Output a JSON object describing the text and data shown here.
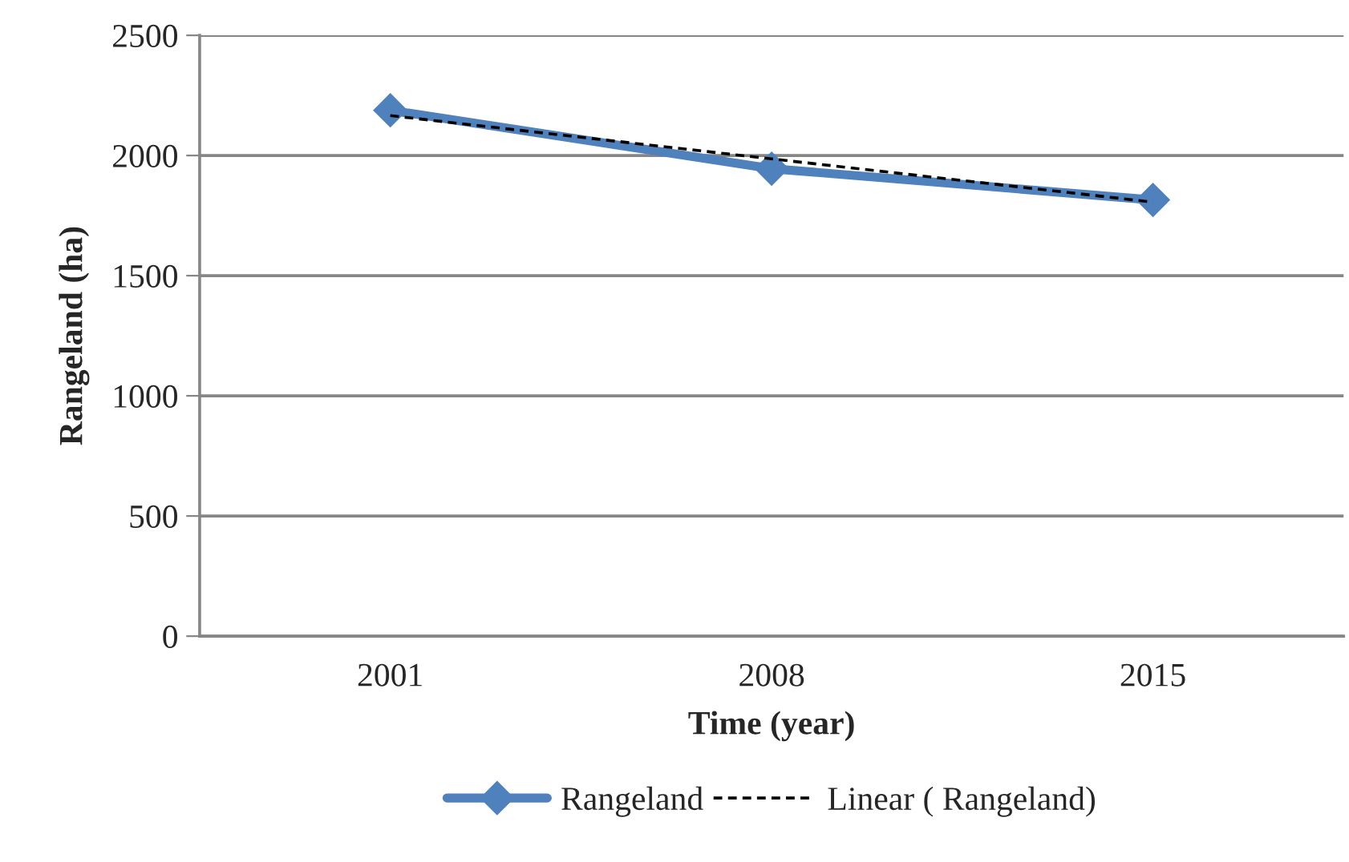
{
  "chart_data": {
    "type": "line",
    "xlabel": "Time (year)",
    "ylabel": "Rangeland (ha)",
    "categories": [
      "2001",
      "2008",
      "2015"
    ],
    "series": [
      {
        "name": "Rangeland",
        "color": "#4f81bd",
        "values": [
          2188,
          1945,
          1815
        ],
        "marker": "diamond",
        "line_style": "solid"
      },
      {
        "name": "Linear ( Rangeland)",
        "color": "#000000",
        "values": [
          2166,
          1986,
          1806
        ],
        "marker": "none",
        "line_style": "dashed"
      }
    ],
    "ylim": [
      0,
      2500
    ],
    "yticks": [
      0,
      500,
      1000,
      1500,
      2000,
      2500
    ],
    "grid": "y",
    "legend": "bottom"
  }
}
